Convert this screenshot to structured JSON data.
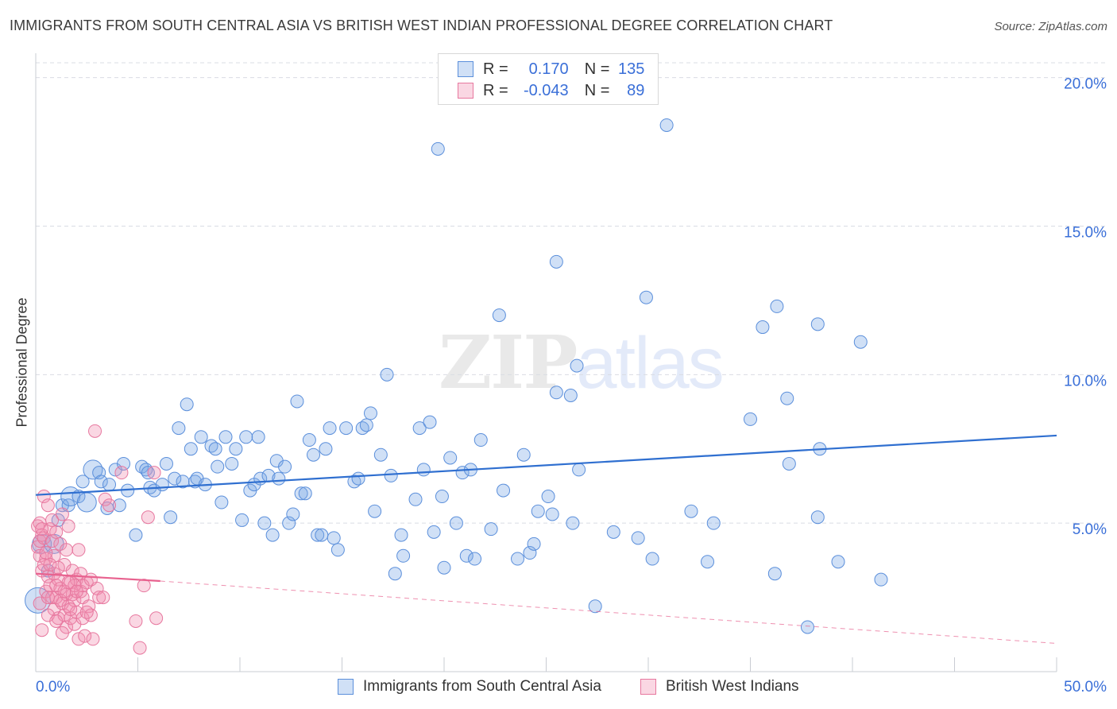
{
  "title": "IMMIGRANTS FROM SOUTH CENTRAL ASIA VS BRITISH WEST INDIAN PROFESSIONAL DEGREE CORRELATION CHART",
  "source": "Source: ZipAtlas.com",
  "watermark": {
    "part1": "ZIP",
    "part2": "atlas"
  },
  "legend": {
    "rows": [
      {
        "r_label": "R =",
        "r_value": "0.170",
        "n_label": "N =",
        "n_value": "135",
        "color": "#6f9fe0"
      },
      {
        "r_label": "R =",
        "r_value": "-0.043",
        "n_label": "N =",
        "n_value": "89",
        "color": "#ef8fb0"
      }
    ]
  },
  "bottom_legend": {
    "series1": "Immigrants from South Central Asia",
    "series2": "British West Indians"
  },
  "colors": {
    "blue_fill": "rgba(120,165,230,0.35)",
    "blue_stroke": "#5b8fdb",
    "blue_line": "#2f6fd0",
    "pink_fill": "rgba(240,140,175,0.35)",
    "pink_stroke": "#e7789f",
    "pink_line": "#e8628f",
    "tick_text": "#3a6fd8",
    "grid": "#d9dce3"
  },
  "chart_data": {
    "type": "scatter",
    "title": "IMMIGRANTS FROM SOUTH CENTRAL ASIA VS BRITISH WEST INDIAN PROFESSIONAL DEGREE CORRELATION CHART",
    "xlabel": "",
    "ylabel": "Professional Degree",
    "xlim": [
      0,
      50
    ],
    "ylim": [
      0,
      20.5
    ],
    "x_tick_labels": [
      "0.0%",
      "50.0%"
    ],
    "y_tick_labels": [
      "5.0%",
      "10.0%",
      "15.0%",
      "20.0%"
    ],
    "y_ticks": [
      5,
      10,
      15,
      20
    ],
    "grid": true,
    "legend_position": "top-center",
    "series": [
      {
        "name": "Immigrants from South Central Asia",
        "r": 0.17,
        "n": 135,
        "trend": {
          "x": [
            0,
            50
          ],
          "y": [
            5.95,
            7.95
          ]
        },
        "points": [
          [
            0.1,
            2.4,
            2
          ],
          [
            0.3,
            4.3,
            1.5
          ],
          [
            0.6,
            3.4,
            1
          ],
          [
            0.9,
            4.3,
            1.5
          ],
          [
            1.1,
            5.1,
            1
          ],
          [
            1.3,
            5.6,
            1
          ],
          [
            1.6,
            5.6,
            1
          ],
          [
            1.7,
            5.9,
            1.5
          ],
          [
            2.1,
            5.9,
            1
          ],
          [
            2.3,
            6.4,
            1
          ],
          [
            2.5,
            5.7,
            1.5
          ],
          [
            2.8,
            6.8,
            1.5
          ],
          [
            3.1,
            6.7,
            1
          ],
          [
            3.2,
            6.4,
            1
          ],
          [
            3.5,
            5.5,
            1
          ],
          [
            3.6,
            6.3,
            1
          ],
          [
            3.9,
            6.8,
            1
          ],
          [
            4.1,
            5.6,
            1
          ],
          [
            4.3,
            7.0,
            1
          ],
          [
            4.5,
            6.1,
            1
          ],
          [
            4.9,
            4.6,
            1
          ],
          [
            5.2,
            6.9,
            1
          ],
          [
            5.4,
            6.8,
            1
          ],
          [
            5.5,
            6.7,
            1
          ],
          [
            5.6,
            6.2,
            1
          ],
          [
            5.8,
            6.1,
            1
          ],
          [
            6.2,
            6.3,
            1
          ],
          [
            6.4,
            7.0,
            1
          ],
          [
            6.6,
            5.2,
            1
          ],
          [
            6.8,
            6.5,
            1
          ],
          [
            7.0,
            8.2,
            1
          ],
          [
            7.2,
            6.4,
            1
          ],
          [
            7.4,
            9.0,
            1
          ],
          [
            7.6,
            7.5,
            1
          ],
          [
            7.8,
            6.4,
            1
          ],
          [
            7.9,
            6.5,
            1
          ],
          [
            8.1,
            7.9,
            1
          ],
          [
            8.3,
            6.3,
            1
          ],
          [
            8.6,
            7.6,
            1
          ],
          [
            8.8,
            7.5,
            1
          ],
          [
            8.9,
            6.9,
            1
          ],
          [
            9.1,
            5.7,
            1
          ],
          [
            9.3,
            7.9,
            1
          ],
          [
            9.6,
            7.0,
            1
          ],
          [
            9.8,
            7.5,
            1
          ],
          [
            10.1,
            5.1,
            1
          ],
          [
            10.3,
            7.9,
            1
          ],
          [
            10.5,
            6.1,
            1
          ],
          [
            10.7,
            6.3,
            1
          ],
          [
            10.9,
            7.9,
            1
          ],
          [
            11.0,
            6.5,
            1
          ],
          [
            11.2,
            5.0,
            1
          ],
          [
            11.4,
            6.6,
            1
          ],
          [
            11.6,
            4.6,
            1
          ],
          [
            11.8,
            7.1,
            1
          ],
          [
            11.9,
            6.5,
            1
          ],
          [
            12.2,
            6.9,
            1
          ],
          [
            12.4,
            5.0,
            1
          ],
          [
            12.6,
            5.3,
            1
          ],
          [
            12.8,
            9.1,
            1
          ],
          [
            13.0,
            6.0,
            1
          ],
          [
            13.2,
            6.0,
            1
          ],
          [
            13.4,
            7.8,
            1
          ],
          [
            13.6,
            7.3,
            1
          ],
          [
            13.8,
            4.6,
            1
          ],
          [
            14.0,
            4.6,
            1
          ],
          [
            14.2,
            7.5,
            1
          ],
          [
            14.4,
            8.2,
            1
          ],
          [
            14.6,
            4.5,
            1
          ],
          [
            14.8,
            4.1,
            1
          ],
          [
            15.2,
            8.2,
            1
          ],
          [
            15.6,
            6.4,
            1
          ],
          [
            15.8,
            6.5,
            1
          ],
          [
            16.0,
            8.2,
            1
          ],
          [
            16.2,
            8.3,
            1
          ],
          [
            16.4,
            8.7,
            1
          ],
          [
            16.6,
            5.4,
            1
          ],
          [
            16.9,
            7.3,
            1
          ],
          [
            17.2,
            10.0,
            1
          ],
          [
            17.4,
            6.6,
            1
          ],
          [
            17.6,
            3.3,
            1
          ],
          [
            17.9,
            4.6,
            1
          ],
          [
            18.0,
            3.9,
            1
          ],
          [
            18.6,
            5.8,
            1
          ],
          [
            18.8,
            8.2,
            1
          ],
          [
            19.0,
            6.8,
            1
          ],
          [
            19.3,
            8.4,
            1
          ],
          [
            19.5,
            4.7,
            1
          ],
          [
            19.7,
            17.6,
            1
          ],
          [
            19.9,
            5.9,
            1
          ],
          [
            20.0,
            3.5,
            1
          ],
          [
            20.3,
            7.2,
            1
          ],
          [
            20.6,
            5.0,
            1
          ],
          [
            20.9,
            6.7,
            1
          ],
          [
            21.1,
            3.9,
            1
          ],
          [
            21.3,
            6.8,
            1
          ],
          [
            21.5,
            3.8,
            1
          ],
          [
            21.8,
            7.8,
            1
          ],
          [
            22.3,
            4.8,
            1
          ],
          [
            22.7,
            12.0,
            1
          ],
          [
            22.9,
            6.1,
            1
          ],
          [
            23.6,
            3.8,
            1
          ],
          [
            23.9,
            7.3,
            1
          ],
          [
            24.2,
            4.0,
            1
          ],
          [
            24.4,
            4.3,
            1
          ],
          [
            24.6,
            5.4,
            1
          ],
          [
            25.1,
            5.9,
            1
          ],
          [
            25.3,
            5.3,
            1
          ],
          [
            25.5,
            9.4,
            1
          ],
          [
            25.5,
            13.8,
            1
          ],
          [
            26.2,
            9.3,
            1
          ],
          [
            26.3,
            5.0,
            1
          ],
          [
            26.5,
            10.3,
            1
          ],
          [
            26.6,
            6.8,
            1
          ],
          [
            27.4,
            2.2,
            1
          ],
          [
            28.3,
            4.7,
            1
          ],
          [
            29.5,
            4.5,
            1
          ],
          [
            30.2,
            3.8,
            1
          ],
          [
            29.9,
            12.6,
            1
          ],
          [
            30.9,
            18.4,
            1
          ],
          [
            32.1,
            5.4,
            1
          ],
          [
            32.9,
            3.7,
            1
          ],
          [
            33.2,
            5.0,
            1
          ],
          [
            35.0,
            8.5,
            1
          ],
          [
            35.6,
            11.6,
            1
          ],
          [
            36.2,
            3.3,
            1
          ],
          [
            36.3,
            12.3,
            1
          ],
          [
            36.8,
            9.2,
            1
          ],
          [
            36.9,
            7.0,
            1
          ],
          [
            37.8,
            1.5,
            1
          ],
          [
            38.3,
            11.7,
            1
          ],
          [
            38.3,
            5.2,
            1
          ],
          [
            38.4,
            7.5,
            1
          ],
          [
            39.3,
            3.7,
            1
          ],
          [
            40.4,
            11.1,
            1
          ],
          [
            41.4,
            3.1,
            1
          ]
        ]
      },
      {
        "name": "British West Indians",
        "r": -0.043,
        "n": 89,
        "trend": {
          "x": [
            0,
            6.1
          ],
          "y": [
            3.3,
            3.05
          ]
        },
        "trend_extension": {
          "x": [
            6.1,
            50
          ],
          "y": [
            3.05,
            0.95
          ]
        },
        "points": [
          [
            0.1,
            4.9,
            1
          ],
          [
            0.1,
            4.2,
            1
          ],
          [
            0.2,
            4.4,
            1
          ],
          [
            0.2,
            3.9,
            1
          ],
          [
            0.2,
            5.0,
            1
          ],
          [
            0.3,
            4.6,
            1
          ],
          [
            0.3,
            3.4,
            1
          ],
          [
            0.4,
            5.9,
            1
          ],
          [
            0.4,
            4.5,
            1
          ],
          [
            0.5,
            3.8,
            1
          ],
          [
            0.5,
            2.7,
            1
          ],
          [
            0.6,
            3.2,
            1
          ],
          [
            0.6,
            5.6,
            1
          ],
          [
            0.7,
            4.8,
            1
          ],
          [
            0.7,
            2.9,
            1
          ],
          [
            0.8,
            2.5,
            1
          ],
          [
            0.8,
            4.4,
            1
          ],
          [
            0.9,
            3.3,
            1
          ],
          [
            0.9,
            2.1,
            1
          ],
          [
            1.0,
            2.5,
            1
          ],
          [
            1.0,
            4.7,
            1
          ],
          [
            1.1,
            3.1,
            1
          ],
          [
            1.1,
            1.8,
            1
          ],
          [
            1.2,
            2.8,
            1
          ],
          [
            1.2,
            4.3,
            1
          ],
          [
            1.3,
            5.3,
            1
          ],
          [
            1.3,
            2.3,
            1
          ],
          [
            1.4,
            1.9,
            1
          ],
          [
            1.4,
            3.6,
            1
          ],
          [
            1.5,
            2.6,
            1
          ],
          [
            1.5,
            1.5,
            1
          ],
          [
            1.6,
            4.9,
            1
          ],
          [
            1.6,
            2.2,
            1
          ],
          [
            1.7,
            3.0,
            1
          ],
          [
            1.7,
            1.8,
            1
          ],
          [
            1.8,
            2.6,
            1
          ],
          [
            1.8,
            3.4,
            1
          ],
          [
            1.9,
            1.6,
            1
          ],
          [
            1.9,
            2.4,
            1
          ],
          [
            2.0,
            3.1,
            1
          ],
          [
            2.0,
            2.0,
            1
          ],
          [
            2.1,
            4.1,
            1
          ],
          [
            2.1,
            1.1,
            1
          ],
          [
            2.2,
            2.7,
            1
          ],
          [
            2.2,
            3.3,
            1
          ],
          [
            2.3,
            1.8,
            1
          ],
          [
            2.3,
            2.5,
            1
          ],
          [
            2.4,
            1.2,
            1
          ],
          [
            2.5,
            3.0,
            1
          ],
          [
            2.6,
            2.2,
            1
          ],
          [
            2.7,
            1.9,
            1
          ],
          [
            2.8,
            1.1,
            1
          ],
          [
            2.9,
            8.1,
            1
          ],
          [
            3.0,
            2.8,
            1
          ],
          [
            3.1,
            2.5,
            1
          ],
          [
            3.3,
            2.5,
            1
          ],
          [
            3.4,
            5.8,
            1
          ],
          [
            3.6,
            5.6,
            1
          ],
          [
            4.2,
            6.7,
            1
          ],
          [
            4.9,
            1.7,
            1
          ],
          [
            5.1,
            0.8,
            1
          ],
          [
            5.3,
            2.9,
            1
          ],
          [
            5.5,
            5.2,
            1
          ],
          [
            5.8,
            6.7,
            1
          ],
          [
            5.9,
            1.8,
            1
          ],
          [
            0.3,
            1.4,
            1
          ],
          [
            0.6,
            1.9,
            1
          ],
          [
            1.0,
            2.9,
            1
          ],
          [
            1.3,
            1.3,
            1
          ],
          [
            1.7,
            2.1,
            1
          ],
          [
            2.3,
            2.9,
            1
          ],
          [
            2.7,
            3.1,
            1
          ],
          [
            0.4,
            3.6,
            1
          ],
          [
            0.9,
            3.9,
            1
          ],
          [
            1.2,
            2.4,
            1
          ],
          [
            1.5,
            4.1,
            1
          ],
          [
            0.2,
            2.3,
            1
          ],
          [
            0.8,
            5.1,
            1
          ],
          [
            1.9,
            2.9,
            1
          ],
          [
            2.5,
            2.0,
            1
          ],
          [
            0.5,
            4.0,
            1
          ],
          [
            1.1,
            3.5,
            1
          ],
          [
            1.4,
            2.7,
            1
          ],
          [
            0.7,
            3.6,
            1
          ],
          [
            1.0,
            1.7,
            1
          ],
          [
            1.6,
            3.0,
            1
          ],
          [
            2.0,
            2.7,
            1
          ],
          [
            0.3,
            4.8,
            1
          ],
          [
            0.6,
            2.5,
            1
          ]
        ]
      }
    ]
  }
}
